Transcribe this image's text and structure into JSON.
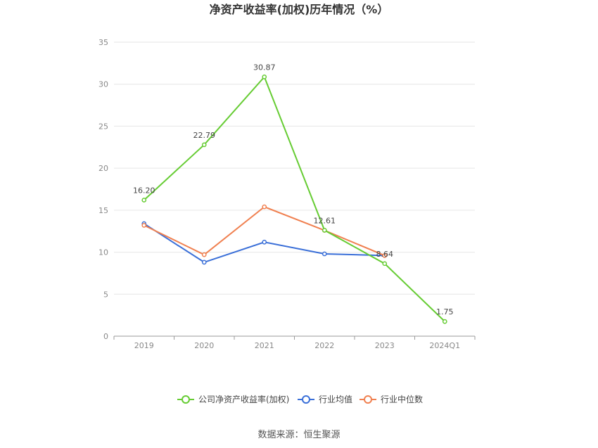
{
  "chart_data": {
    "type": "line",
    "title": "净资产收益率(加权)历年情况（%）",
    "categories": [
      "2019",
      "2020",
      "2021",
      "2022",
      "2023",
      "2024Q1"
    ],
    "ylim": [
      0,
      35
    ],
    "yticks": [
      0,
      5,
      10,
      15,
      20,
      25,
      30,
      35
    ],
    "grid": true,
    "legend_position": "bottom",
    "series": [
      {
        "name": "公司净资产收益率(加权)",
        "color": "#66cc33",
        "values": [
          16.2,
          22.79,
          30.87,
          12.61,
          8.64,
          1.75
        ],
        "labels": [
          "16.20",
          "22.79",
          "30.87",
          "12.61",
          "8.64",
          "1.75"
        ]
      },
      {
        "name": "行业均值",
        "color": "#3a6fd8",
        "values": [
          13.4,
          8.8,
          11.2,
          9.8,
          9.6,
          null
        ]
      },
      {
        "name": "行业中位数",
        "color": "#f08050",
        "values": [
          13.2,
          9.7,
          15.4,
          12.6,
          9.6,
          null
        ]
      }
    ]
  },
  "source_text": "数据来源：恒生聚源"
}
